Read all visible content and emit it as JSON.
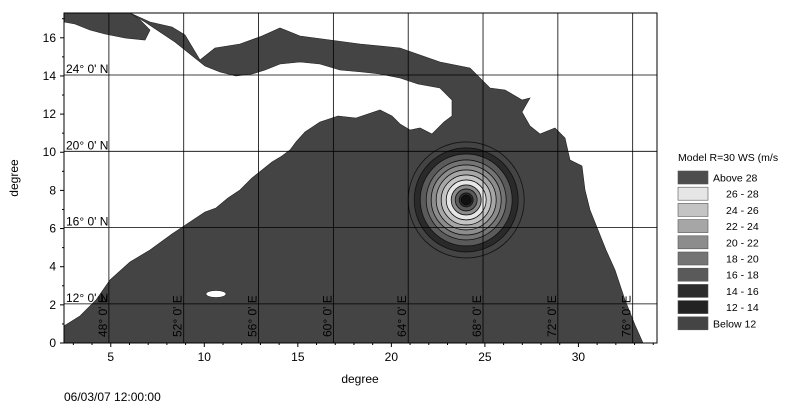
{
  "map": {
    "x_axis": {
      "title": "degree",
      "range": [
        2.5,
        34.2
      ],
      "ticks": [
        5,
        10,
        15,
        20,
        25,
        30
      ]
    },
    "y_axis": {
      "title": "degree",
      "range": [
        0,
        17.3
      ],
      "ticks": [
        0,
        2,
        4,
        6,
        8,
        10,
        12,
        14,
        16
      ]
    },
    "graticule_lat": [
      {
        "label": "24° 0' N",
        "y": 14.05
      },
      {
        "label": "20° 0' N",
        "y": 10.05
      },
      {
        "label": "16° 0' N",
        "y": 6.05
      },
      {
        "label": "12° 0' N",
        "y": 2.05
      }
    ],
    "graticule_lon": [
      {
        "label": "48° 0' E",
        "x": 4.9
      },
      {
        "label": "52° 0' E",
        "x": 8.9
      },
      {
        "label": "56° 0' E",
        "x": 12.9
      },
      {
        "label": "60° 0' E",
        "x": 16.9
      },
      {
        "label": "64° 0' E",
        "x": 20.9
      },
      {
        "label": "68° 0' E",
        "x": 24.9
      },
      {
        "label": "72° 0' E",
        "x": 28.9
      },
      {
        "label": "76° 0' E",
        "x": 32.9
      }
    ],
    "cyclone_center": {
      "x": 24.0,
      "y": 7.5
    },
    "timestamp": "06/03/07 12:00:00"
  },
  "legend": {
    "title": "Model R=30 WS (m/s",
    "items": [
      {
        "label": "Above 28",
        "color": "#4d4d4d"
      },
      {
        "label": "26 - 28",
        "color": "#e6e6e6"
      },
      {
        "label": "24 - 26",
        "color": "#c4c4c4"
      },
      {
        "label": "22 - 24",
        "color": "#a6a6a6"
      },
      {
        "label": "20 - 22",
        "color": "#8c8c8c"
      },
      {
        "label": "18 - 20",
        "color": "#747474"
      },
      {
        "label": "16 - 18",
        "color": "#5a5a5a"
      },
      {
        "label": "14 - 16",
        "color": "#2c2c2c"
      },
      {
        "label": "12 - 14",
        "color": "#222222"
      },
      {
        "label": "Below 12",
        "color": "#444444"
      }
    ]
  },
  "colors": {
    "sea": "#444444",
    "land": "#ffffff",
    "grid": "#000000"
  }
}
